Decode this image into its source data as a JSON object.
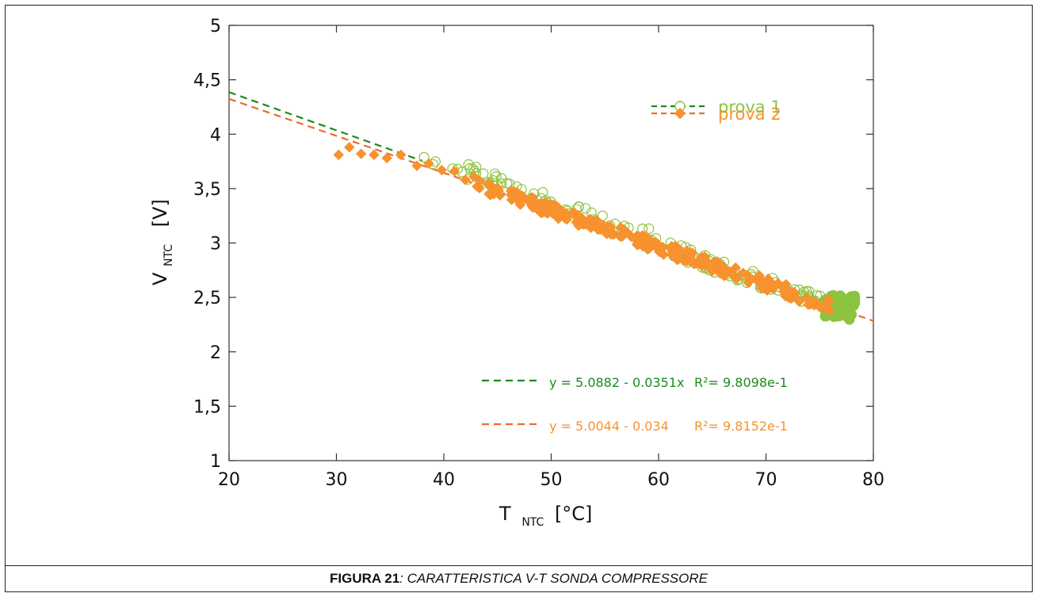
{
  "chart_data": {
    "type": "scatter",
    "xlabel": {
      "main": "T",
      "sub": "NTC",
      "unit": "[°C]"
    },
    "ylabel": {
      "main": "V",
      "sub": "NTC",
      "unit": "[V]"
    },
    "xlim": [
      20,
      80
    ],
    "ylim": [
      1,
      5
    ],
    "xticks": [
      "20",
      "30",
      "40",
      "50",
      "60",
      "70",
      "80"
    ],
    "yticks": [
      "1",
      "1,5",
      "2",
      "2,5",
      "3",
      "3,5",
      "4",
      "4,5",
      "5"
    ],
    "grid": false,
    "legend_placement": "top-right",
    "series": [
      {
        "name": "prova 1",
        "marker": "open-circle",
        "color": "#8dc43f",
        "fit_color": "#1e8a1e",
        "fit": {
          "intercept": 5.0882,
          "slope": -0.0351,
          "x_range": [
            20,
            38
          ]
        },
        "equation_label": "y = 5.0882 - 0.0351x",
        "r2_label": "R²= 9.8098e-1"
      },
      {
        "name": "prova 2",
        "marker": "filled-diamond",
        "color": "#f7922e",
        "fit_color": "#ef6b2b",
        "fit": {
          "intercept": 5.0044,
          "slope": -0.034,
          "x_range": [
            20,
            80
          ]
        },
        "equation_label": "y = 5.0044 - 0.034",
        "r2_label": "R²= 9.8152e-1"
      }
    ]
  },
  "caption": {
    "bold": "FIGURA 21",
    "rest": ": CARATTERISTICA V-T SONDA COMPRESSORE"
  }
}
